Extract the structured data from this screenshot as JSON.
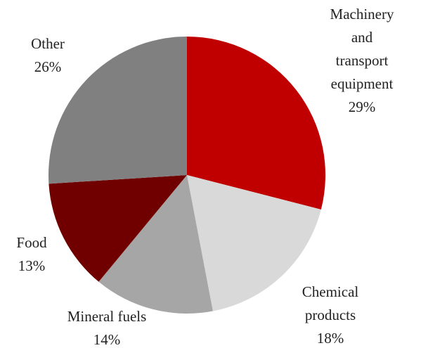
{
  "chart_data": {
    "type": "pie",
    "categories": [
      "Machinery\nand transport\nequipment",
      "Chemical\nproducts",
      "Mineral fuels",
      "Food",
      "Other"
    ],
    "values": [
      29,
      18,
      14,
      13,
      26
    ],
    "value_labels": [
      "29%",
      "18%",
      "14%",
      "13%",
      "26%"
    ],
    "colors": [
      "#c00000",
      "#d9d9d9",
      "#a6a6a6",
      "#700000",
      "#808080"
    ]
  }
}
